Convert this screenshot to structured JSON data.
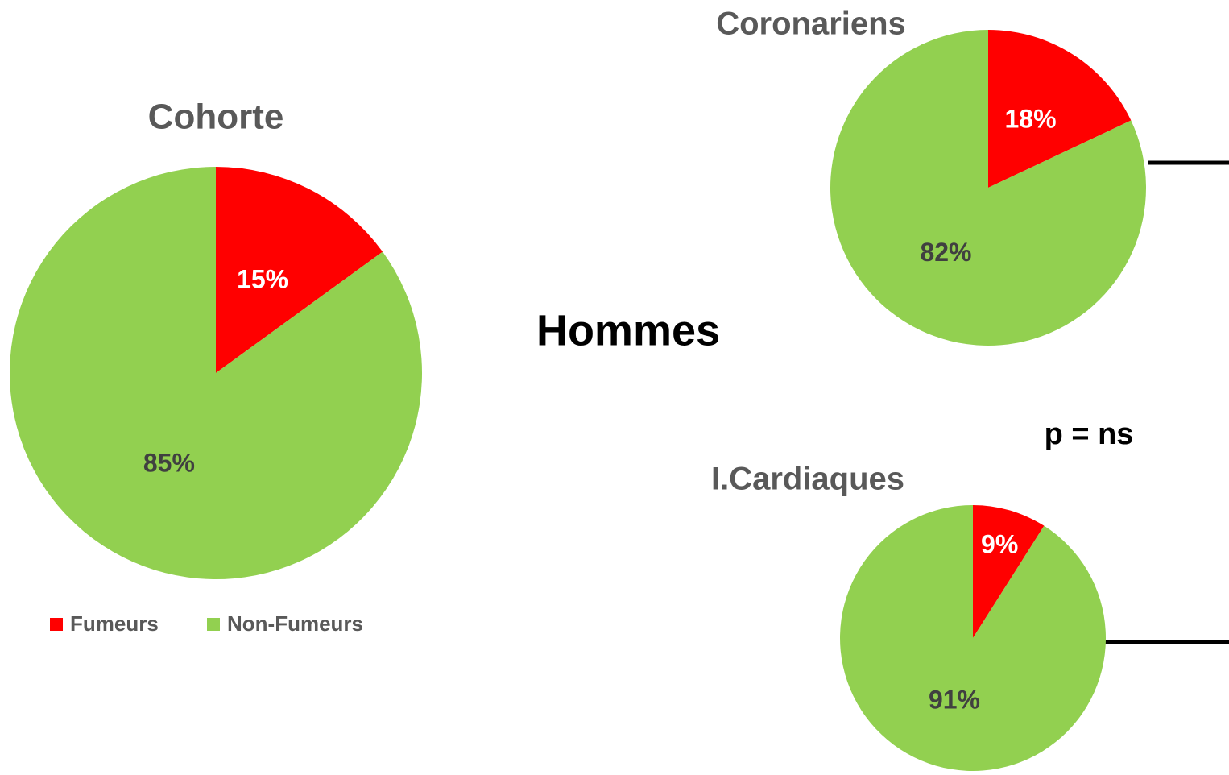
{
  "chart_data": [
    {
      "type": "pie",
      "title": "Cohorte",
      "categories": [
        "Fumeurs",
        "Non-Fumeurs"
      ],
      "values": [
        15,
        85
      ],
      "value_labels": [
        "15%",
        "85%"
      ],
      "colors": [
        "#ff0000",
        "#92d050"
      ],
      "legend": "bottom"
    },
    {
      "type": "pie",
      "title": "Coronariens",
      "values": [
        18,
        82
      ],
      "value_labels": [
        "18%",
        "82%"
      ],
      "colors": [
        "#ff0000",
        "#92d050"
      ]
    },
    {
      "type": "pie",
      "title": "I.Cardiaques",
      "values": [
        9,
        91
      ],
      "value_labels": [
        "9%",
        "91%"
      ],
      "colors": [
        "#ff0000",
        "#92d050"
      ]
    }
  ],
  "heading": "Hommes",
  "p_value": "p = ns"
}
